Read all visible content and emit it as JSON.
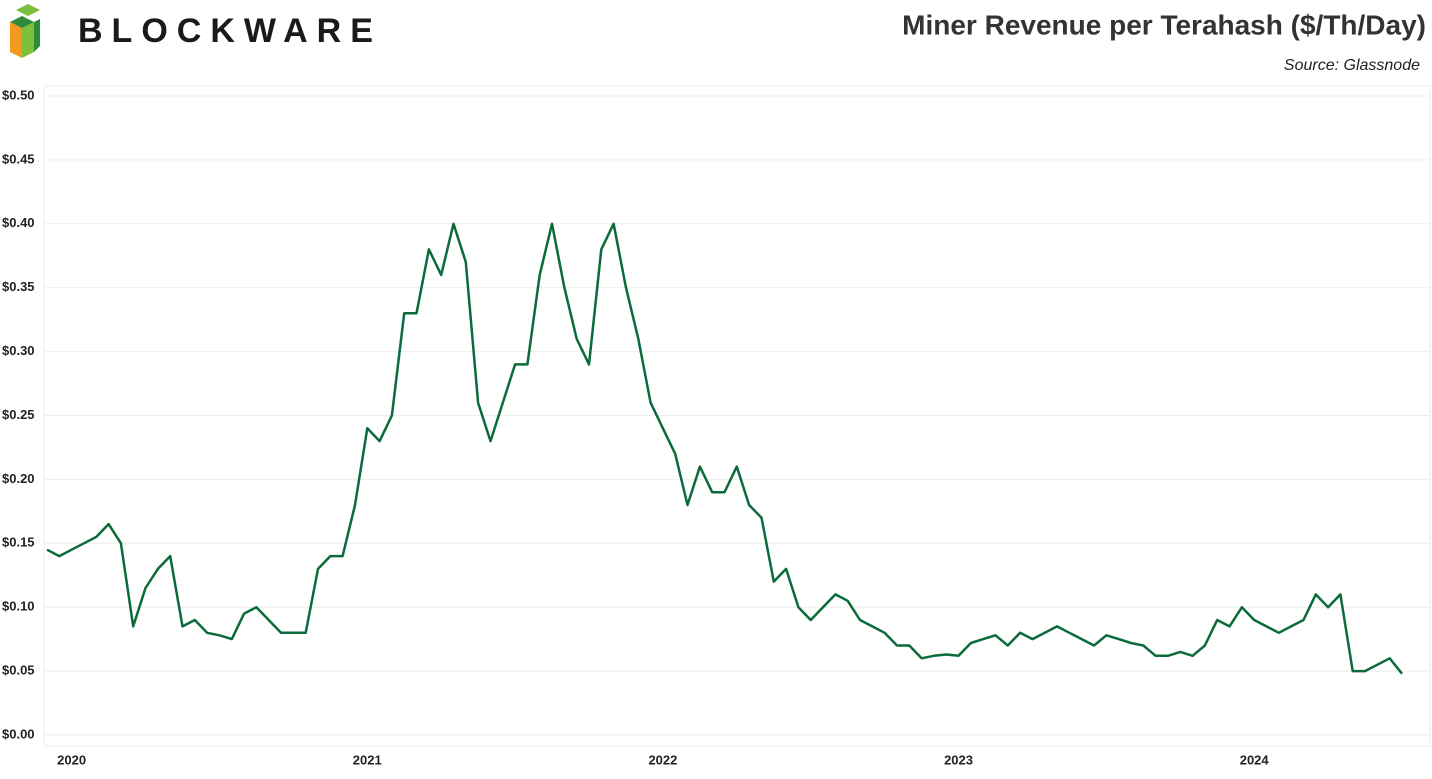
{
  "logo": "BLOCKWARE",
  "chart_data": {
    "type": "line",
    "title": "Miner Revenue per Terahash ($/Th/Day)",
    "subtitle": "Source: Glassnode",
    "categories": [
      null,
      null,
      "2020",
      null,
      null,
      null,
      null,
      null,
      null,
      null,
      null,
      null,
      null,
      null,
      null,
      null,
      null,
      null,
      null,
      null,
      null,
      null,
      null,
      null,
      null,
      null,
      "2021",
      null,
      null,
      null,
      null,
      null,
      null,
      null,
      null,
      null,
      null,
      null,
      null,
      null,
      null,
      null,
      null,
      null,
      null,
      null,
      null,
      null,
      null,
      null,
      "2022",
      null,
      null,
      null,
      null,
      null,
      null,
      null,
      null,
      null,
      null,
      null,
      null,
      null,
      null,
      null,
      null,
      null,
      null,
      null,
      null,
      null,
      null,
      null,
      "2023",
      null,
      null,
      null,
      null,
      null,
      null,
      null,
      null,
      null,
      null,
      null,
      null,
      null,
      null,
      null,
      null,
      null,
      null,
      null,
      null,
      null,
      null,
      null,
      "2024",
      null,
      null,
      null,
      null,
      null,
      null,
      null,
      null,
      null,
      null,
      null,
      null
    ],
    "series": [
      {
        "name": "Miner Revenue per Terahash",
        "color": "#0b6b3a",
        "values": [
          0.145,
          0.14,
          0.145,
          0.15,
          0.155,
          0.165,
          0.15,
          0.085,
          0.115,
          0.13,
          0.14,
          0.085,
          0.09,
          0.08,
          0.078,
          0.075,
          0.095,
          0.1,
          0.09,
          0.08,
          0.08,
          0.08,
          0.13,
          0.14,
          0.14,
          0.18,
          0.24,
          0.23,
          0.25,
          0.33,
          0.33,
          0.38,
          0.36,
          0.4,
          0.37,
          0.26,
          0.23,
          0.26,
          0.29,
          0.29,
          0.36,
          0.4,
          0.35,
          0.31,
          0.29,
          0.38,
          0.4,
          0.35,
          0.31,
          0.26,
          0.24,
          0.22,
          0.18,
          0.21,
          0.19,
          0.19,
          0.21,
          0.18,
          0.17,
          0.12,
          0.13,
          0.1,
          0.09,
          0.1,
          0.11,
          0.105,
          0.09,
          0.085,
          0.08,
          0.07,
          0.07,
          0.06,
          0.062,
          0.063,
          0.062,
          0.072,
          0.075,
          0.078,
          0.07,
          0.08,
          0.075,
          0.08,
          0.085,
          0.08,
          0.075,
          0.07,
          0.078,
          0.075,
          0.072,
          0.07,
          0.062,
          0.062,
          0.065,
          0.062,
          0.07,
          0.09,
          0.085,
          0.1,
          0.09,
          0.085,
          0.08,
          0.085,
          0.09,
          0.11,
          0.1,
          0.11,
          0.05,
          0.05,
          0.055,
          0.06,
          0.048
        ]
      }
    ],
    "ylim": [
      0,
      0.5
    ],
    "yticks": [
      {
        "value": 0,
        "label": "$0.00"
      },
      {
        "value": 0.05,
        "label": "$0.05"
      },
      {
        "value": 0.1,
        "label": "$0.10"
      },
      {
        "value": 0.15,
        "label": "$0.15"
      },
      {
        "value": 0.2,
        "label": "$0.20"
      },
      {
        "value": 0.25,
        "label": "$0.25"
      },
      {
        "value": 0.3,
        "label": "$0.30"
      },
      {
        "value": 0.35,
        "label": "$0.35"
      },
      {
        "value": 0.4,
        "label": "$0.40"
      },
      {
        "value": 0.45,
        "label": "$0.45"
      },
      {
        "value": 0.5,
        "label": "$0.50"
      }
    ],
    "grid": true
  }
}
